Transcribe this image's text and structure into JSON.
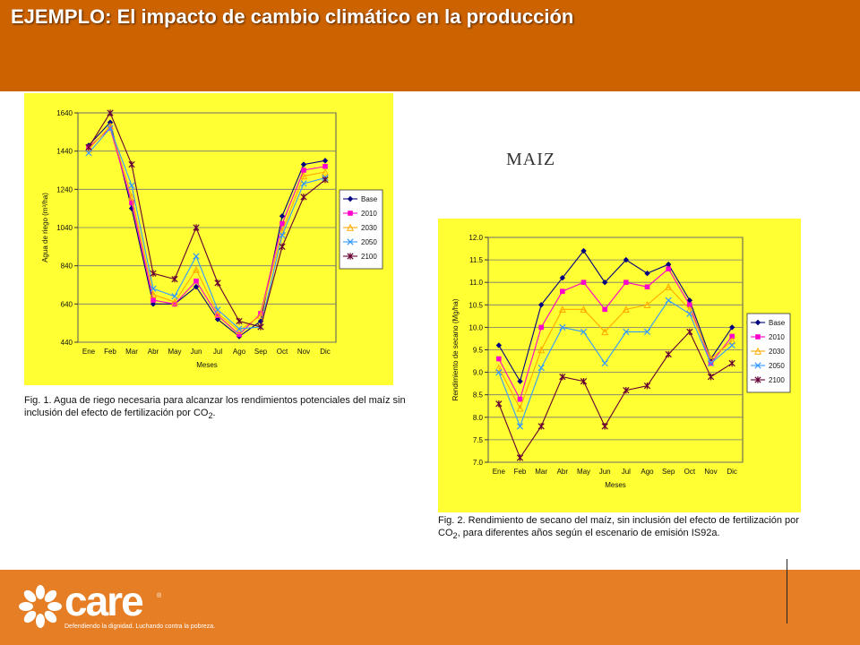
{
  "slide": {
    "title": "EJEMPLO: El impacto de cambio climático en la producción",
    "crop_label": "MAIZ"
  },
  "chart_data": [
    {
      "type": "line",
      "ylabel": "Agua de riego (m³/ha)",
      "xlabel": "Meses",
      "categories": [
        "Ene",
        "Feb",
        "Mar",
        "Abr",
        "May",
        "Jun",
        "Jul",
        "Ago",
        "Sep",
        "Oct",
        "Nov",
        "Dic"
      ],
      "ylim": [
        440,
        1640
      ],
      "yticks": [
        440,
        640,
        840,
        1040,
        1240,
        1440,
        1640
      ],
      "grid": true,
      "legend": "right",
      "series": [
        {
          "name": "Base",
          "color": "#000080",
          "marker": "diamond",
          "values": [
            1470,
            1590,
            1140,
            640,
            640,
            730,
            560,
            470,
            550,
            1100,
            1370,
            1390
          ]
        },
        {
          "name": "2010",
          "color": "#ff00cc",
          "marker": "square",
          "values": [
            1460,
            1560,
            1170,
            660,
            640,
            760,
            580,
            480,
            590,
            1060,
            1340,
            1360
          ]
        },
        {
          "name": "2030",
          "color": "#ffaa00",
          "marker": "triangle",
          "values": [
            1450,
            1570,
            1200,
            690,
            650,
            820,
            590,
            500,
            580,
            1020,
            1310,
            1330
          ]
        },
        {
          "name": "2050",
          "color": "#3399ff",
          "marker": "x",
          "values": [
            1430,
            1560,
            1260,
            720,
            680,
            890,
            610,
            510,
            520,
            1000,
            1270,
            1300
          ]
        },
        {
          "name": "2100",
          "color": "#660033",
          "marker": "star",
          "values": [
            1460,
            1640,
            1370,
            800,
            770,
            1040,
            750,
            550,
            520,
            940,
            1200,
            1290
          ]
        }
      ],
      "caption_text": "Fig. 1. Agua de riego necesaria para alcanzar los rendimientos potenciales del maíz sin inclusión del efecto de fertilización por CO",
      "caption_sub": "2",
      "caption_end": "."
    },
    {
      "type": "line",
      "ylabel": "Rendimiento de secano (Mg/ha)",
      "xlabel": "Meses",
      "categories": [
        "Ene",
        "Feb",
        "Mar",
        "Abr",
        "May",
        "Jun",
        "Jul",
        "Ago",
        "Sep",
        "Oct",
        "Nov",
        "Dic"
      ],
      "ylim": [
        7.0,
        12.0
      ],
      "yticks": [
        7.0,
        7.5,
        8.0,
        8.5,
        9.0,
        9.5,
        10.0,
        10.5,
        11.0,
        11.5,
        12.0
      ],
      "grid": true,
      "legend": "right",
      "series": [
        {
          "name": "Base",
          "color": "#000080",
          "marker": "diamond",
          "values": [
            9.6,
            8.8,
            10.5,
            11.1,
            11.7,
            11.0,
            11.5,
            11.2,
            11.4,
            10.6,
            9.3,
            10.0
          ]
        },
        {
          "name": "2010",
          "color": "#ff00cc",
          "marker": "square",
          "values": [
            9.3,
            8.4,
            10.0,
            10.8,
            11.0,
            10.4,
            11.0,
            10.9,
            11.3,
            10.5,
            9.2,
            9.8
          ]
        },
        {
          "name": "2030",
          "color": "#ffaa00",
          "marker": "triangle",
          "values": [
            9.1,
            8.2,
            9.5,
            10.4,
            10.4,
            9.9,
            10.4,
            10.5,
            10.9,
            10.4,
            9.3,
            9.7
          ]
        },
        {
          "name": "2050",
          "color": "#3399ff",
          "marker": "x",
          "values": [
            9.0,
            7.8,
            9.1,
            10.0,
            9.9,
            9.2,
            9.9,
            9.9,
            10.6,
            10.3,
            9.2,
            9.6
          ]
        },
        {
          "name": "2100",
          "color": "#660033",
          "marker": "star",
          "values": [
            8.3,
            7.1,
            7.8,
            8.9,
            8.8,
            7.8,
            8.6,
            8.7,
            9.4,
            9.9,
            8.9,
            9.2
          ]
        }
      ],
      "caption_text": "Fig. 2. Rendimiento de secano del maíz, sin inclusión del efecto de fertilización por CO",
      "caption_sub": "2",
      "caption_end": ", para diferentes años según el escenario de emisión IS92a."
    }
  ],
  "footer": {
    "logo_word": "care",
    "logo_reg": "®",
    "tagline": "Defendiendo la dignidad. Luchando contra la pobreza.",
    "accent_color": "#e57e25",
    "header_color": "#cc6300",
    "chart_background": "#ffff33"
  }
}
